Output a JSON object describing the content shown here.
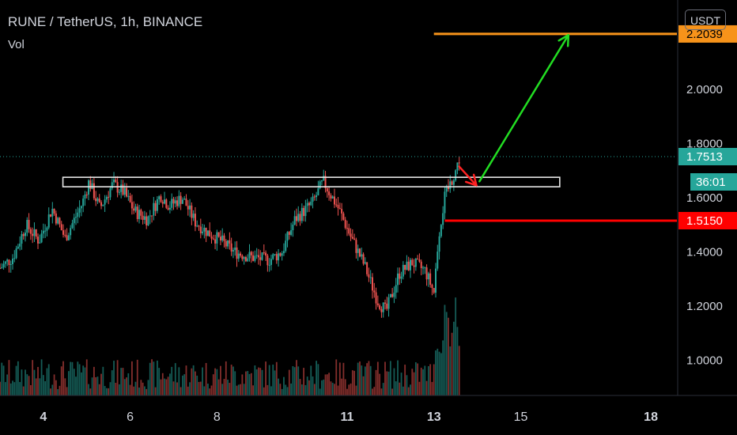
{
  "header": {
    "title": "RUNE / TetherUS, 1h, BINANCE",
    "volume_label": "Vol",
    "currency_button": "USDT"
  },
  "colors": {
    "up": "#26a69a",
    "down": "#ef5350",
    "target": "#f7931a",
    "stop": "#ff0000",
    "arrow_up": "#22dd22",
    "arrow_down": "#ff2222",
    "current": "#26a69a",
    "axis_text": "#d1d4dc"
  },
  "chart_data": {
    "type": "candlestick",
    "symbol": "RUNE / TetherUS",
    "interval": "1h",
    "exchange": "BINANCE",
    "x_tick_labels": [
      "4",
      "6",
      "8",
      "11",
      "13",
      "15",
      "18"
    ],
    "x_ticks": [
      4,
      6,
      8,
      11,
      13,
      15,
      18
    ],
    "x_tick_bold": [
      true,
      false,
      false,
      true,
      true,
      false,
      true
    ],
    "x_range": [
      3.0,
      18.6
    ],
    "y_ticks": [
      1.0,
      1.2,
      1.4,
      1.6,
      1.8,
      2.0
    ],
    "y_tick_labels": [
      "1.0000",
      "1.2000",
      "1.4000",
      "1.6000",
      "1.8000",
      "2.0000"
    ],
    "y_range": [
      0.87,
      2.3
    ],
    "price_path": [
      [
        3.0,
        1.34
      ],
      [
        3.3,
        1.38
      ],
      [
        3.6,
        1.5
      ],
      [
        3.9,
        1.44
      ],
      [
        4.2,
        1.56
      ],
      [
        4.5,
        1.45
      ],
      [
        4.9,
        1.58
      ],
      [
        5.05,
        1.66
      ],
      [
        5.3,
        1.56
      ],
      [
        5.6,
        1.65
      ],
      [
        5.85,
        1.62
      ],
      [
        6.1,
        1.55
      ],
      [
        6.4,
        1.52
      ],
      [
        6.7,
        1.61
      ],
      [
        6.9,
        1.57
      ],
      [
        7.2,
        1.6
      ],
      [
        7.5,
        1.51
      ],
      [
        7.8,
        1.47
      ],
      [
        8.1,
        1.44
      ],
      [
        8.4,
        1.4
      ],
      [
        8.8,
        1.38
      ],
      [
        9.2,
        1.37
      ],
      [
        9.5,
        1.4
      ],
      [
        9.8,
        1.52
      ],
      [
        10.2,
        1.58
      ],
      [
        10.45,
        1.66
      ],
      [
        10.8,
        1.56
      ],
      [
        11.1,
        1.45
      ],
      [
        11.4,
        1.35
      ],
      [
        11.7,
        1.22
      ],
      [
        11.9,
        1.18
      ],
      [
        12.2,
        1.32
      ],
      [
        12.5,
        1.36
      ],
      [
        12.8,
        1.33
      ],
      [
        13.0,
        1.25
      ],
      [
        13.1,
        1.45
      ],
      [
        13.25,
        1.6
      ],
      [
        13.5,
        1.7
      ],
      [
        13.6,
        1.7513
      ]
    ],
    "volume_range": [
      0,
      1
    ],
    "resistance_zone": {
      "x": [
        4.45,
        15.9
      ],
      "y": [
        1.64,
        1.675
      ]
    },
    "target": {
      "value": 2.2039,
      "label": "2.2039",
      "x_start": 13.0
    },
    "stop": {
      "value": 1.515,
      "label": "1.5150",
      "x_start": 13.25
    },
    "current_price": {
      "value": 1.7513,
      "label": "1.7513",
      "countdown": "36:01"
    },
    "arrows": [
      {
        "kind": "down",
        "from": [
          13.58,
          1.715
        ],
        "to": [
          13.98,
          1.645
        ]
      },
      {
        "kind": "up",
        "from": [
          14.05,
          1.66
        ],
        "to": [
          16.1,
          2.2
        ]
      }
    ],
    "grid": false,
    "legend": "none"
  }
}
